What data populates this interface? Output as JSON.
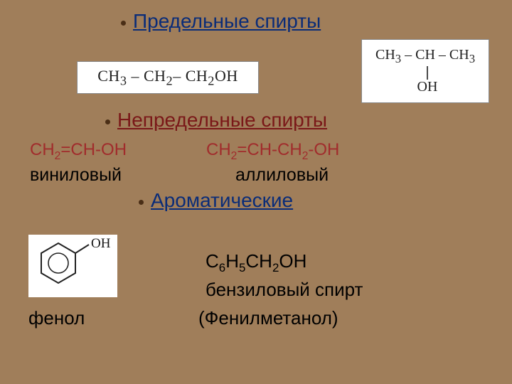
{
  "background_color": "#a07e5a",
  "headings": {
    "saturated": {
      "text": "Предельные спирты",
      "color": "#0a2c78"
    },
    "unsaturated": {
      "text": "Непредельные спирты",
      "color": "#7a1818"
    },
    "aromatic": {
      "text": "Ароматические",
      "color": "#0a2c78"
    }
  },
  "saturated": {
    "propanol_html": "CH<sub>3</sub> – CH<sub>2</sub>– CH<sub>2</sub>OH",
    "isopropanol_line1_html": "CH<sub>3</sub> – CH – CH<sub>3</sub>",
    "isopropanol_line2": "|",
    "isopropanol_line3": "OH"
  },
  "unsaturated": {
    "vinyl_formula_html": "CH<span class=\"sub\">2</span>=CH-OH",
    "allyl_formula_html": "CH<span class=\"sub\">2</span>=CH-CH<span class=\"sub\">2</span>-OH",
    "vinyl_name": "виниловый",
    "allyl_name": "аллиловый"
  },
  "aromatic": {
    "phenol_oh": "OH",
    "phenol_name": "фенол",
    "benzyl_formula_html": "C<span class=\"sub\">6</span>H<span class=\"sub\">5</span>CH<span class=\"sub\">2</span>OH",
    "benzyl_name": "бензиловый спирт",
    "benzyl_alt": "(Фенилметанол)"
  },
  "styling": {
    "heading_fontsize": 30,
    "red_text_color": "#a12c2c",
    "black_text_color": "#000000",
    "bullet_color": "#4a2e16",
    "box_bg": "#ffffff"
  }
}
